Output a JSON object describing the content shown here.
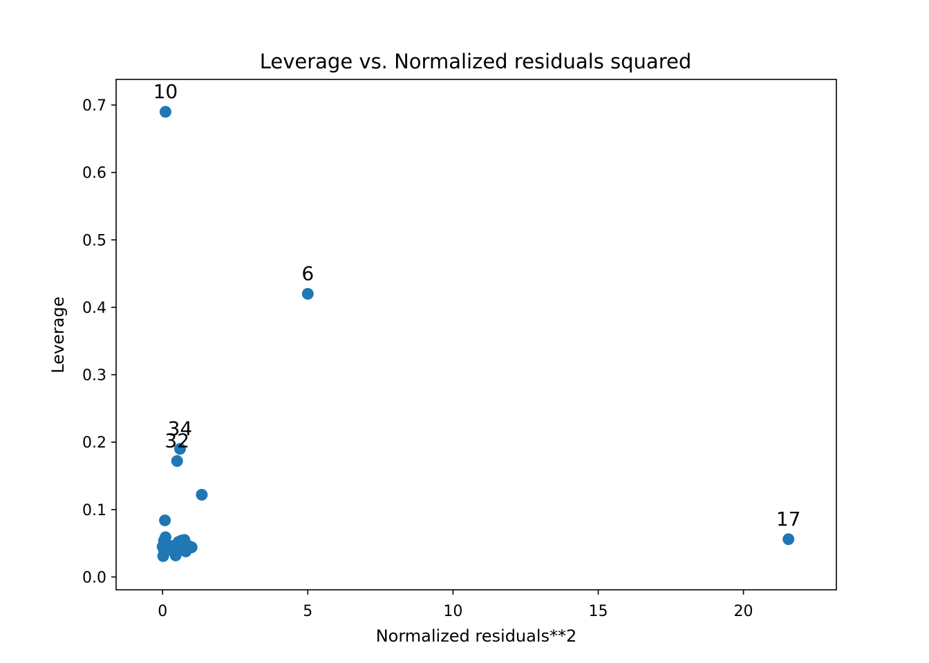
{
  "chart_data": {
    "type": "scatter",
    "title": "Leverage vs. Normalized residuals squared",
    "xlabel": "Normalized residuals**2",
    "ylabel": "Leverage",
    "xlim": [
      -1.6,
      23.2
    ],
    "ylim": [
      -0.019,
      0.738
    ],
    "xticks": [
      0,
      5,
      10,
      15,
      20
    ],
    "yticks": [
      0.0,
      0.1,
      0.2,
      0.3,
      0.4,
      0.5,
      0.6,
      0.7
    ],
    "grid": false,
    "legend": null,
    "color": "#1f77b4",
    "points": [
      {
        "x": 0.1,
        "y": 0.69
      },
      {
        "x": 5.0,
        "y": 0.42
      },
      {
        "x": 21.55,
        "y": 0.056
      },
      {
        "x": 0.6,
        "y": 0.19
      },
      {
        "x": 0.5,
        "y": 0.172
      },
      {
        "x": 1.35,
        "y": 0.122
      },
      {
        "x": 0.08,
        "y": 0.084
      },
      {
        "x": 0.02,
        "y": 0.031
      },
      {
        "x": 0.05,
        "y": 0.04
      },
      {
        "x": 0.0,
        "y": 0.045
      },
      {
        "x": 0.1,
        "y": 0.05
      },
      {
        "x": 0.05,
        "y": 0.054
      },
      {
        "x": 0.1,
        "y": 0.059
      },
      {
        "x": 0.18,
        "y": 0.047
      },
      {
        "x": 0.25,
        "y": 0.043
      },
      {
        "x": 0.3,
        "y": 0.04
      },
      {
        "x": 0.45,
        "y": 0.032
      },
      {
        "x": 0.5,
        "y": 0.048
      },
      {
        "x": 0.55,
        "y": 0.052
      },
      {
        "x": 0.65,
        "y": 0.054
      },
      {
        "x": 0.75,
        "y": 0.055
      },
      {
        "x": 0.8,
        "y": 0.038
      },
      {
        "x": 0.9,
        "y": 0.046
      },
      {
        "x": 1.0,
        "y": 0.044
      },
      {
        "x": 0.35,
        "y": 0.046
      },
      {
        "x": 0.6,
        "y": 0.045
      },
      {
        "x": 0.7,
        "y": 0.049
      }
    ],
    "annotations": [
      {
        "text": "10",
        "x": 0.1,
        "y": 0.69
      },
      {
        "text": "6",
        "x": 5.0,
        "y": 0.42
      },
      {
        "text": "34",
        "x": 0.6,
        "y": 0.19
      },
      {
        "text": "32",
        "x": 0.5,
        "y": 0.172
      },
      {
        "text": "17",
        "x": 21.55,
        "y": 0.056
      }
    ]
  }
}
